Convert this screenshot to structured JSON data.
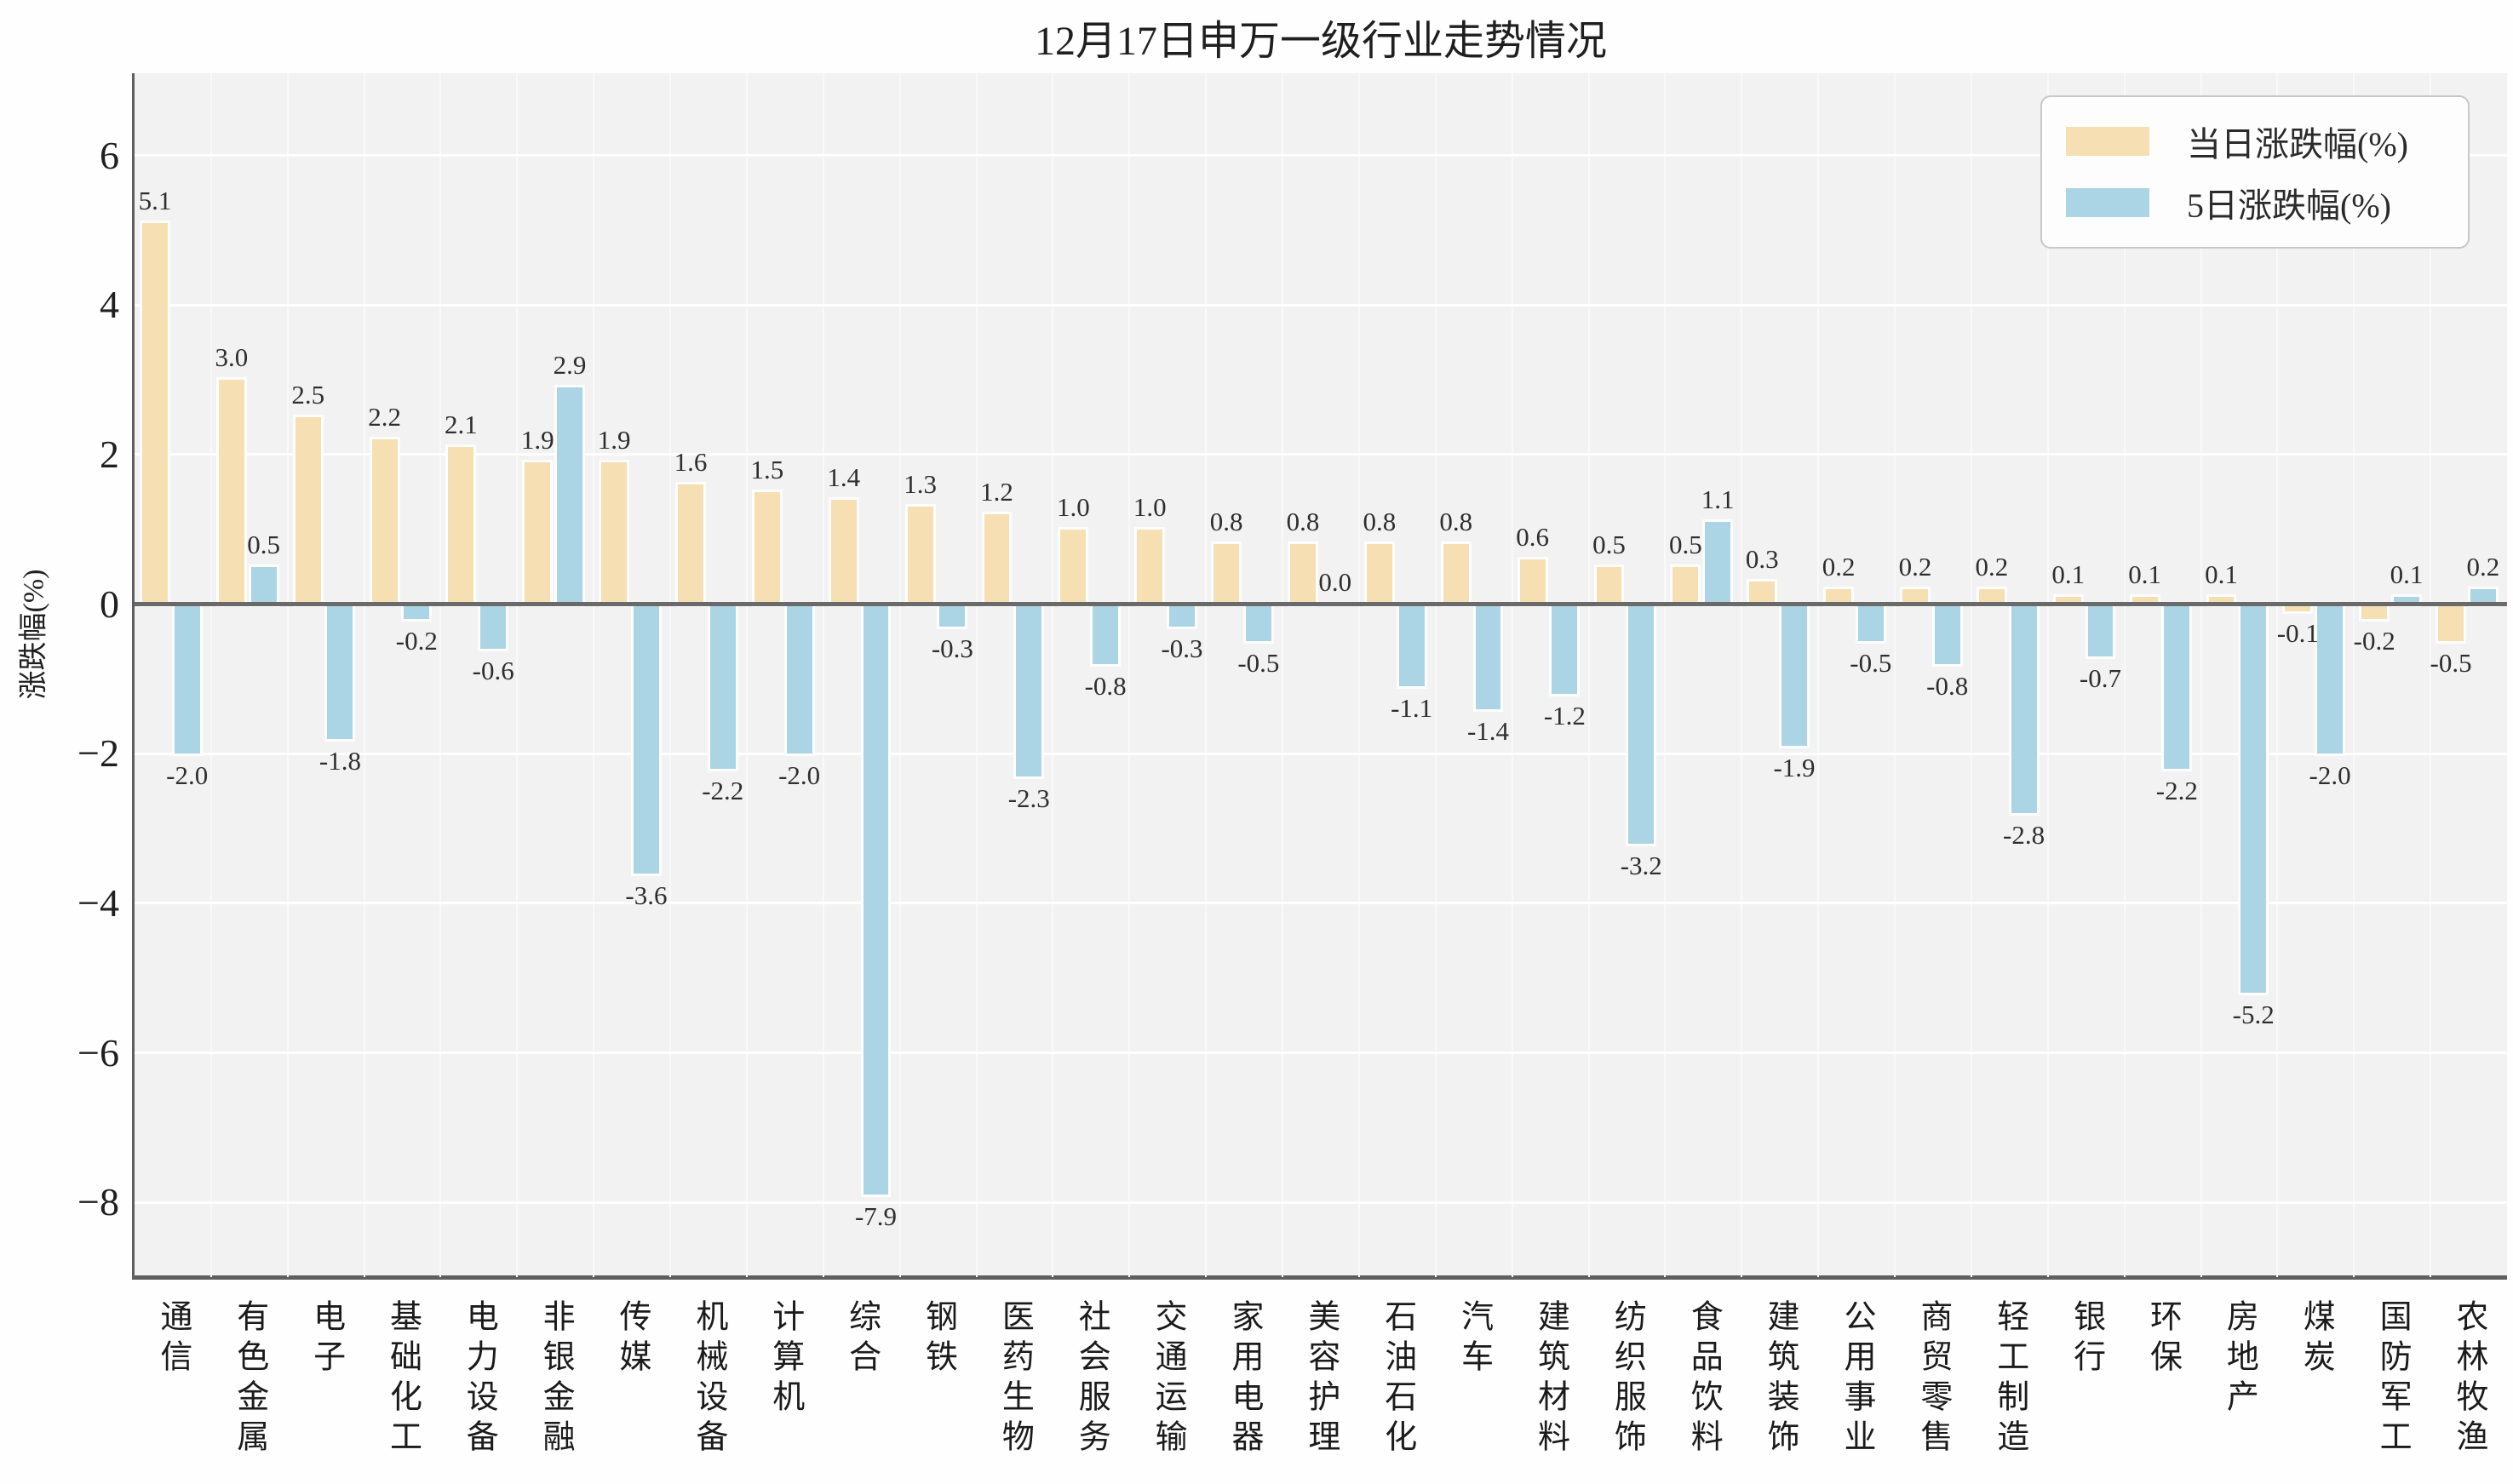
{
  "title": "12月17日申万一级行业走势情况",
  "y_axis_title": "涨跌幅(%)",
  "legend": {
    "series1_label": "当日涨跌幅(%)",
    "series2_label": "5日涨跌幅(%)"
  },
  "colors": {
    "daily": "#f5dfb3",
    "five_day": "#abd5e5",
    "plot_background": "#f3f2f3",
    "zero_line": "#6a6a6a"
  },
  "chart_data": {
    "type": "bar",
    "title": "12月17日申万一级行业走势情况",
    "xlabel": "",
    "ylabel": "涨跌幅(%)",
    "categories": [
      "通信",
      "有色金属",
      "电子",
      "基础化工",
      "电力设备",
      "非银金融",
      "传媒",
      "机械设备",
      "计算机",
      "综合",
      "钢铁",
      "医药生物",
      "社会服务",
      "交通运输",
      "家用电器",
      "美容护理",
      "石油石化",
      "汽车",
      "建筑材料",
      "纺织服饰",
      "食品饮料",
      "建筑装饰",
      "公用事业",
      "商贸零售",
      "轻工制造",
      "银行",
      "环保",
      "房地产",
      "煤炭",
      "国防军工",
      "农林牧渔"
    ],
    "series": [
      {
        "name": "当日涨跌幅(%)",
        "color": "#f5dfb3",
        "values": [
          5.1,
          3.0,
          2.5,
          2.2,
          2.1,
          1.9,
          1.9,
          1.6,
          1.5,
          1.4,
          1.3,
          1.2,
          1.0,
          1.0,
          0.8,
          0.8,
          0.8,
          0.8,
          0.6,
          0.5,
          0.5,
          0.3,
          0.2,
          0.2,
          0.2,
          0.1,
          0.1,
          0.1,
          -0.1,
          -0.2,
          -0.5
        ]
      },
      {
        "name": "5日涨跌幅(%)",
        "color": "#abd5e5",
        "values": [
          -2.0,
          0.5,
          -1.8,
          -0.2,
          -0.6,
          2.9,
          -3.6,
          -2.2,
          -2.0,
          -7.9,
          -0.3,
          -2.3,
          -0.8,
          -0.3,
          -0.5,
          0.0,
          -1.1,
          -1.4,
          -1.2,
          -3.2,
          1.1,
          -1.9,
          -0.5,
          -0.8,
          -2.8,
          -0.7,
          -2.2,
          -5.2,
          -2.0,
          0.1,
          0.2
        ]
      }
    ],
    "yticks": [
      6,
      4,
      2,
      0,
      -2,
      -4,
      -6,
      -8
    ],
    "ylim": [
      -9,
      7.1
    ],
    "grid": true,
    "legend_position": "upper right",
    "value_labels": true
  }
}
